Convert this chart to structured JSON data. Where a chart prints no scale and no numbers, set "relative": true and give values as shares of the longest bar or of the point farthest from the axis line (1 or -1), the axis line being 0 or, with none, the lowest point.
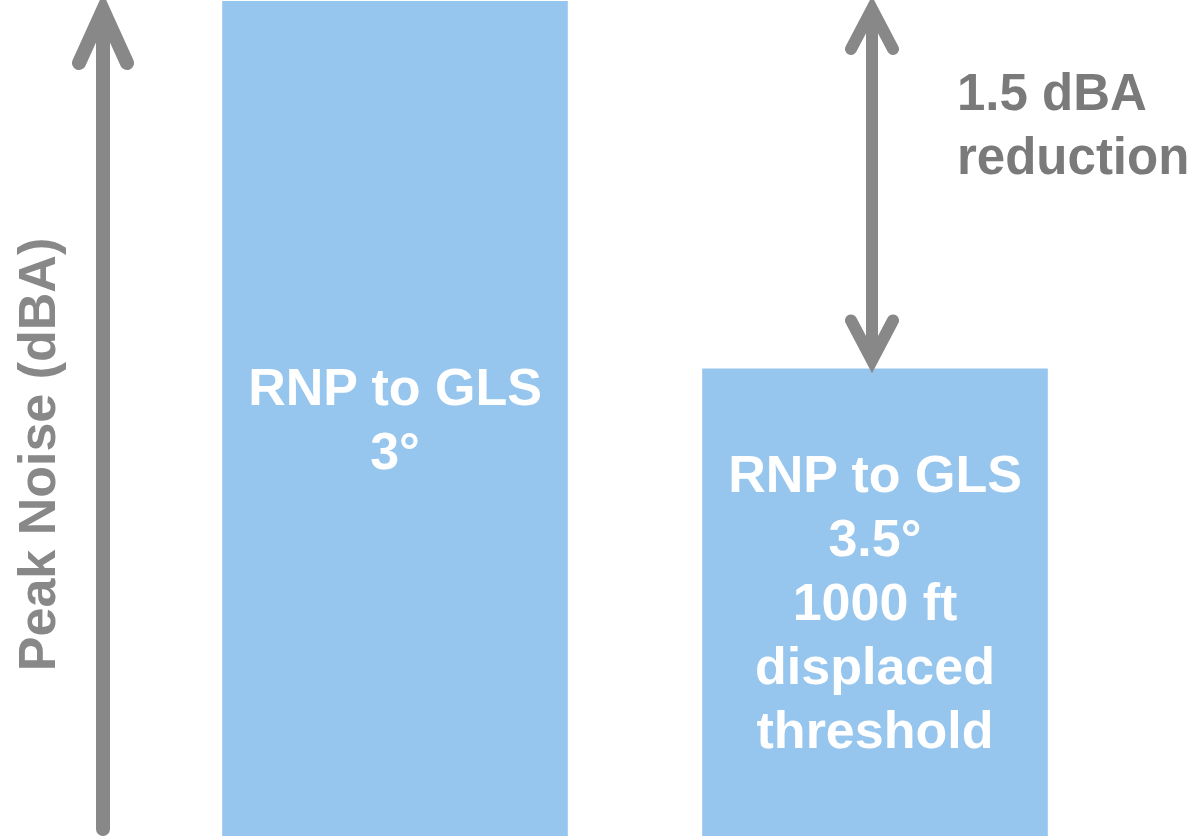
{
  "chart_data": {
    "type": "bar",
    "ylabel": "Peak Noise (dBA)",
    "categories": [
      "RNP to GLS\n3°",
      "RNP to GLS\n3.5°\n1000 ft\ndisplaced\nthreshold"
    ],
    "values": [
      1,
      0.56
    ],
    "color": "#96c5ed",
    "relative": true,
    "tick_labels": false,
    "annotations": [
      "1.5 dBA\nreduction"
    ]
  }
}
